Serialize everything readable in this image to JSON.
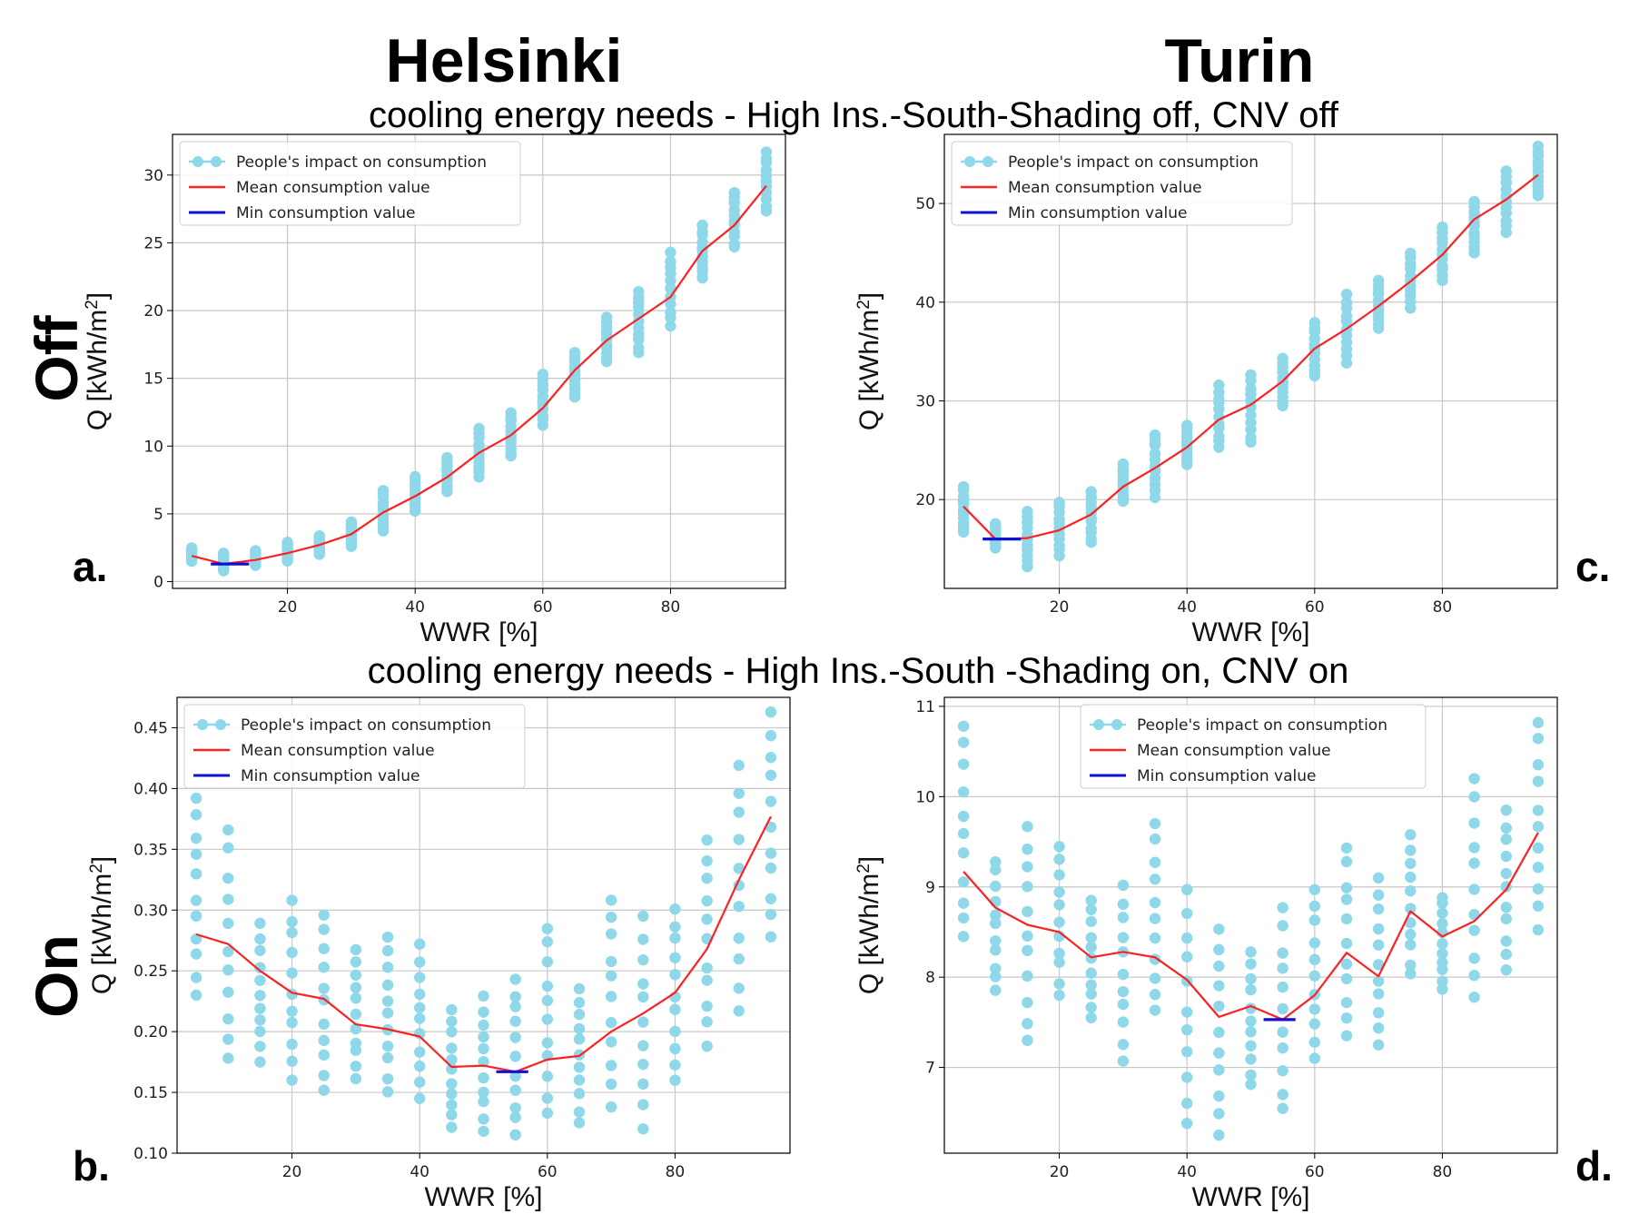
{
  "header": {
    "col_left": "Helsinki",
    "col_right": "Turin",
    "row_top": "Off",
    "row_bottom": "On",
    "suptitle_top": "cooling energy needs - High Ins.-South-Shading off, CNV off",
    "suptitle_bottom": "cooling energy needs - High Ins.-South -Shading on, CNV on"
  },
  "colors": {
    "scatter": "#8fd8ea",
    "mean_line": "#ff2020",
    "min_line": "#1010d0",
    "grid": "#c8c8c8"
  },
  "chart_data": [
    {
      "id": "a",
      "panel_label": "a.",
      "type": "scatter",
      "xlabel": "WWR [%]",
      "ylabel": "Q [kWh/m²]",
      "xlim": [
        2,
        98
      ],
      "ylim": [
        -0.5,
        33
      ],
      "xticks": [
        20,
        40,
        60,
        80
      ],
      "yticks": [
        0,
        5,
        10,
        15,
        20,
        25,
        30
      ],
      "tick_labels_y": [
        "0",
        "5",
        "10",
        "15",
        "20",
        "25",
        "30"
      ],
      "legend": [
        "People's impact on consumption",
        "Mean consumption value",
        "Min consumption value"
      ],
      "x": [
        5,
        10,
        15,
        20,
        25,
        30,
        35,
        40,
        45,
        50,
        55,
        60,
        65,
        70,
        75,
        80,
        85,
        90,
        95
      ],
      "y_min": [
        1.5,
        0.8,
        1.2,
        1.5,
        2.0,
        2.6,
        3.7,
        5.2,
        6.6,
        7.7,
        9.2,
        11.5,
        13.6,
        16.2,
        16.9,
        18.8,
        22.4,
        24.6,
        27.3
      ],
      "y_max": [
        2.5,
        2.1,
        2.3,
        2.9,
        3.4,
        4.4,
        6.8,
        7.8,
        9.2,
        11.3,
        12.5,
        15.3,
        16.9,
        19.5,
        21.5,
        24.3,
        26.3,
        28.7,
        31.7
      ],
      "mean": [
        1.9,
        1.3,
        1.6,
        2.1,
        2.7,
        3.5,
        5.1,
        6.3,
        7.7,
        9.5,
        10.8,
        12.8,
        15.6,
        17.8,
        19.4,
        21.0,
        24.4,
        26.3,
        29.2
      ],
      "min_segment": {
        "x": [
          8,
          14
        ],
        "y": 1.3
      }
    },
    {
      "id": "c",
      "panel_label": "c.",
      "type": "scatter",
      "xlabel": "WWR [%]",
      "ylabel": "Q [kWh/m²]",
      "xlim": [
        2,
        98
      ],
      "ylim": [
        11,
        57
      ],
      "xticks": [
        20,
        40,
        60,
        80
      ],
      "yticks": [
        20,
        30,
        40,
        50
      ],
      "tick_labels_y": [
        "20",
        "30",
        "40",
        "50"
      ],
      "legend": [
        "People's impact on consumption",
        "Mean consumption value",
        "Min consumption value"
      ],
      "x": [
        5,
        10,
        15,
        20,
        25,
        30,
        35,
        40,
        45,
        50,
        55,
        60,
        65,
        70,
        75,
        80,
        85,
        90,
        95
      ],
      "y_min": [
        16.7,
        15.1,
        13.2,
        14.3,
        15.6,
        19.8,
        20.2,
        23.5,
        25.2,
        25.7,
        29.5,
        32.5,
        33.8,
        37.3,
        39.4,
        42.2,
        45.0,
        47.0,
        50.8
      ],
      "y_max": [
        21.3,
        17.6,
        18.8,
        19.8,
        20.8,
        23.6,
        26.7,
        27.6,
        31.6,
        32.8,
        34.3,
        38.0,
        40.8,
        42.2,
        45.0,
        47.6,
        50.2,
        53.3,
        55.8
      ],
      "mean": [
        19.3,
        16.0,
        16.1,
        16.9,
        18.5,
        21.3,
        23.2,
        25.3,
        28.1,
        29.6,
        32.0,
        35.3,
        37.3,
        39.6,
        42.1,
        44.8,
        48.4,
        50.4,
        52.9
      ],
      "min_segment": {
        "x": [
          8,
          14
        ],
        "y": 16.0
      }
    },
    {
      "id": "b",
      "panel_label": "b.",
      "type": "scatter",
      "xlabel": "WWR [%]",
      "ylabel": "Q [kWh/m²]",
      "xlim": [
        2,
        98
      ],
      "ylim": [
        0.1,
        0.475
      ],
      "xticks": [
        20,
        40,
        60,
        80
      ],
      "yticks": [
        0.1,
        0.15,
        0.2,
        0.25,
        0.3,
        0.35,
        0.4,
        0.45
      ],
      "tick_labels_y": [
        "0.10",
        "0.15",
        "0.20",
        "0.25",
        "0.30",
        "0.35",
        "0.40",
        "0.45"
      ],
      "legend": [
        "People's impact on consumption",
        "Mean consumption value",
        "Min consumption value"
      ],
      "x": [
        5,
        10,
        15,
        20,
        25,
        30,
        35,
        40,
        45,
        50,
        55,
        60,
        65,
        70,
        75,
        80,
        85,
        90,
        95
      ],
      "y_min": [
        0.23,
        0.175,
        0.175,
        0.16,
        0.15,
        0.16,
        0.15,
        0.145,
        0.12,
        0.118,
        0.113,
        0.133,
        0.125,
        0.138,
        0.12,
        0.16,
        0.187,
        0.217,
        0.275
      ],
      "y_max": [
        0.392,
        0.366,
        0.29,
        0.308,
        0.298,
        0.27,
        0.278,
        0.272,
        0.218,
        0.23,
        0.245,
        0.286,
        0.236,
        0.312,
        0.295,
        0.302,
        0.36,
        0.42,
        0.463
      ],
      "mean": [
        0.28,
        0.272,
        0.25,
        0.232,
        0.227,
        0.206,
        0.202,
        0.196,
        0.171,
        0.172,
        0.167,
        0.177,
        0.18,
        0.2,
        0.215,
        0.232,
        0.268,
        0.325,
        0.377
      ],
      "min_segment": {
        "x": [
          52,
          57
        ],
        "y": 0.167
      }
    },
    {
      "id": "d",
      "panel_label": "d.",
      "type": "scatter",
      "xlabel": "WWR [%]",
      "ylabel": "Q [kWh/m²]",
      "xlim": [
        2,
        98
      ],
      "ylim": [
        6.05,
        11.1
      ],
      "xticks": [
        20,
        40,
        60,
        80
      ],
      "yticks": [
        7,
        8,
        9,
        10,
        11
      ],
      "tick_labels_y": [
        "7",
        "8",
        "9",
        "10",
        "11"
      ],
      "legend": [
        "People's impact on consumption",
        "Mean consumption value",
        "Min consumption value"
      ],
      "x": [
        5,
        10,
        15,
        20,
        25,
        30,
        35,
        40,
        45,
        50,
        55,
        60,
        65,
        70,
        75,
        80,
        85,
        90,
        95
      ],
      "y_min": [
        8.4,
        7.83,
        7.3,
        7.8,
        7.55,
        7.07,
        7.6,
        6.38,
        6.25,
        6.8,
        6.52,
        7.1,
        7.3,
        7.25,
        8.0,
        7.85,
        7.72,
        8.08,
        8.5
      ],
      "y_max": [
        10.78,
        9.3,
        9.67,
        9.45,
        8.85,
        9.02,
        9.7,
        8.97,
        8.58,
        8.28,
        8.77,
        8.97,
        9.47,
        9.1,
        9.6,
        8.9,
        10.2,
        9.85,
        10.82
      ],
      "mean": [
        9.17,
        8.77,
        8.58,
        8.5,
        8.22,
        8.28,
        8.22,
        7.97,
        7.56,
        7.68,
        7.53,
        7.8,
        8.27,
        8.01,
        8.73,
        8.45,
        8.62,
        8.97,
        9.6
      ],
      "min_segment": {
        "x": [
          52,
          57
        ],
        "y": 7.53
      }
    }
  ]
}
